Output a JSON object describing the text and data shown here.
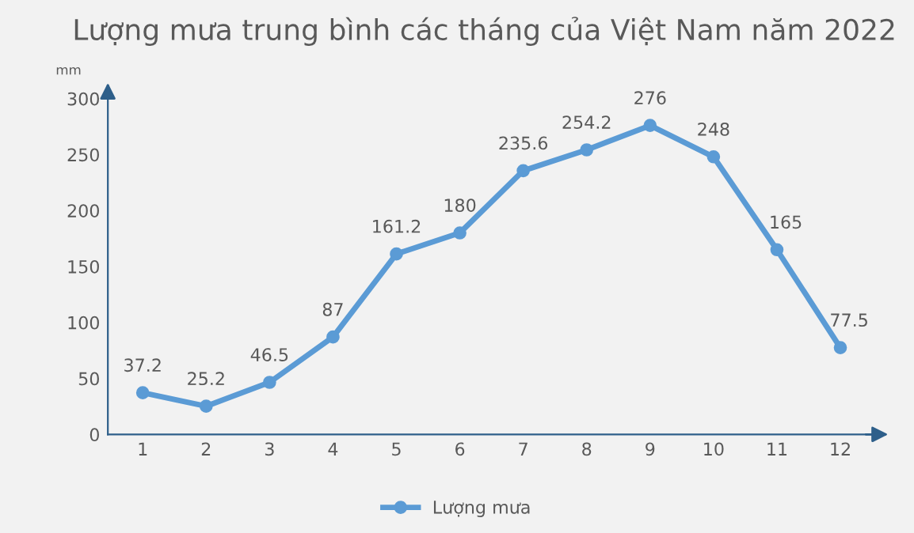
{
  "chart_data": {
    "type": "line",
    "title": "Lượng mưa trung bình các tháng của Việt Nam năm 2022",
    "ylabel": "mm",
    "categories": [
      "1",
      "2",
      "3",
      "4",
      "5",
      "6",
      "7",
      "8",
      "9",
      "10",
      "11",
      "12"
    ],
    "series": [
      {
        "name": "Lượng mưa",
        "color": "#5b9bd5",
        "values": [
          37.2,
          25.2,
          46.5,
          87,
          161.2,
          180,
          235.6,
          254.2,
          276,
          248,
          165,
          77.5
        ]
      }
    ],
    "ylim": [
      0,
      300
    ],
    "yticks": [
      0,
      50,
      100,
      150,
      200,
      250,
      300
    ],
    "grid": false,
    "legend": "bottom",
    "marker": "circle",
    "line_style": "solid",
    "data_labels": true
  }
}
